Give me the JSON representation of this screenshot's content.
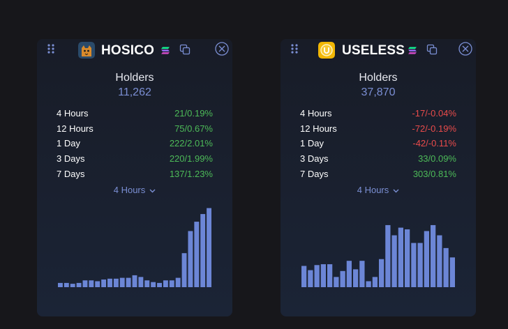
{
  "colors": {
    "background": "#17171b",
    "card": "#1b2232",
    "accent": "#7b8fd4",
    "bar": "#6c86d6",
    "positive": "#4dbb58",
    "negative": "#ea4b4b",
    "text": "#ffffff"
  },
  "cards": [
    {
      "name": "HOSICO",
      "logo_icon": "cat-avatar-icon",
      "chain_icon": "solana-icon",
      "holders_label": "Holders",
      "holders_value": "11,262",
      "stats": [
        {
          "period": "4 Hours",
          "change": "21/0.19%",
          "sign": "pos"
        },
        {
          "period": "12 Hours",
          "change": "75/0.67%",
          "sign": "pos"
        },
        {
          "period": "1 Day",
          "change": "222/2.01%",
          "sign": "pos"
        },
        {
          "period": "3 Days",
          "change": "220/1.99%",
          "sign": "pos"
        },
        {
          "period": "7 Days",
          "change": "137/1.23%",
          "sign": "pos"
        }
      ],
      "selected_period": "4 Hours",
      "chart_data": {
        "type": "bar",
        "values": [
          5,
          5,
          4,
          5,
          8,
          8,
          7,
          9,
          10,
          10,
          11,
          11,
          14,
          12,
          8,
          6,
          5,
          8,
          8,
          11,
          40,
          66,
          77,
          86,
          93
        ],
        "ylim": [
          0,
          100
        ]
      }
    },
    {
      "name": "USELESS",
      "logo_icon": "useless-coin-icon",
      "chain_icon": "solana-icon",
      "holders_label": "Holders",
      "holders_value": "37,870",
      "stats": [
        {
          "period": "4 Hours",
          "change": "-17/-0.04%",
          "sign": "neg"
        },
        {
          "period": "12 Hours",
          "change": "-72/-0.19%",
          "sign": "neg"
        },
        {
          "period": "1 Day",
          "change": "-42/-0.11%",
          "sign": "neg"
        },
        {
          "period": "3 Days",
          "change": "33/0.09%",
          "sign": "pos"
        },
        {
          "period": "7 Days",
          "change": "303/0.81%",
          "sign": "pos"
        }
      ],
      "selected_period": "4 Hours",
      "chart_data": {
        "type": "bar",
        "values": [
          25,
          20,
          26,
          27,
          27,
          12,
          19,
          31,
          21,
          31,
          7,
          12,
          33,
          73,
          61,
          70,
          68,
          52,
          52,
          66,
          73,
          61,
          46,
          35
        ],
        "ylim": [
          0,
          100
        ]
      }
    }
  ]
}
